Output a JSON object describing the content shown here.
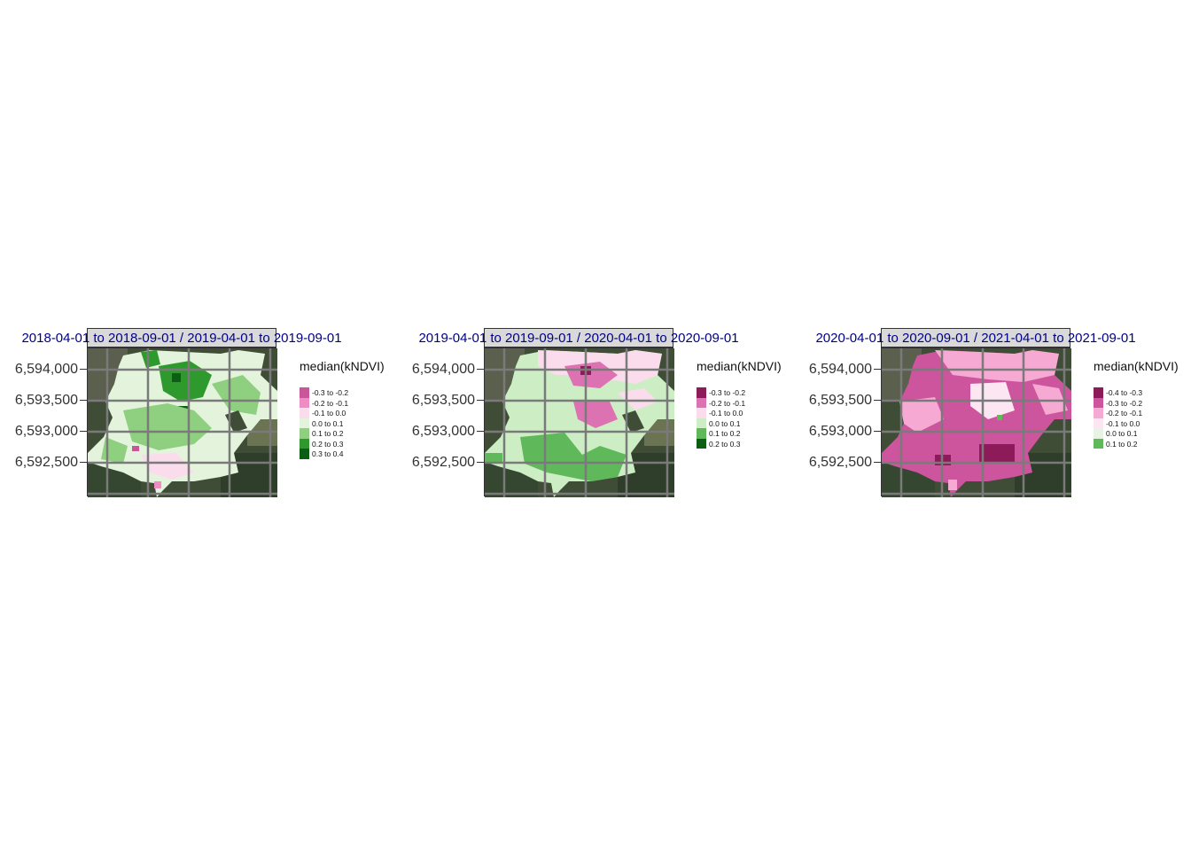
{
  "y_tick_labels": [
    "6,594,000",
    "6,593,500",
    "6,593,000",
    "6,592,500"
  ],
  "legend_title": "median(kNDVI)",
  "panels": [
    {
      "strip_label": "2018-04-01 to 2018-09-01 / 2019-04-01 to 2019-09-01",
      "legend": [
        {
          "label": "-0.3 to -0.2",
          "color": "#c9559b"
        },
        {
          "label": "-0.2 to -0.1",
          "color": "#f08cc4"
        },
        {
          "label": "-0.1 to 0.0",
          "color": "#fbdced"
        },
        {
          "label": "0.0 to 0.1",
          "color": "#e4f4dc"
        },
        {
          "label": "0.1 to 0.2",
          "color": "#8fcf80"
        },
        {
          "label": "0.2 to 0.3",
          "color": "#2e9a2e"
        },
        {
          "label": "0.3 to 0.4",
          "color": "#0b5e14"
        }
      ]
    },
    {
      "strip_label": "2019-04-01 to 2019-09-01 / 2020-04-01 to 2020-09-01",
      "legend": [
        {
          "label": "-0.3 to -0.2",
          "color": "#8e1b59"
        },
        {
          "label": "-0.2 to -0.1",
          "color": "#dd72b2"
        },
        {
          "label": "-0.1 to 0.0",
          "color": "#fbdced"
        },
        {
          "label": "0.0 to 0.1",
          "color": "#cdeec5"
        },
        {
          "label": "0.1 to 0.2",
          "color": "#5fb85a"
        },
        {
          "label": "0.2 to 0.3",
          "color": "#0b5e14"
        }
      ]
    },
    {
      "strip_label": "2020-04-01 to 2020-09-01 / 2021-04-01 to 2021-09-01",
      "legend": [
        {
          "label": "-0.4 to -0.3",
          "color": "#8e1b59"
        },
        {
          "label": "-0.3 to -0.2",
          "color": "#cd559d"
        },
        {
          "label": "-0.2 to -0.1",
          "color": "#f6a9d2"
        },
        {
          "label": "-0.1 to 0.0",
          "color": "#fbe6f1"
        },
        {
          "label": "0.0 to 0.1",
          "color": "#e8f4e3"
        },
        {
          "label": "0.1 to 0.2",
          "color": "#5fb85a"
        }
      ]
    }
  ]
}
